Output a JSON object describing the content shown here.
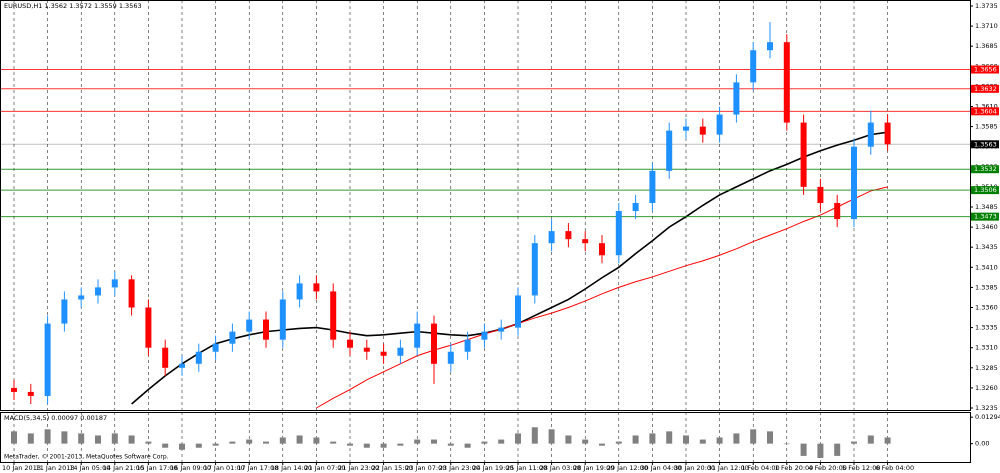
{
  "header": "EURUSD,H1 1.3562 1.3572 1.3559 1.3563",
  "footer": "MetaTrader, © 2001-2013, MetaQuotes Software Corp.",
  "chart_data": {
    "type": "candlestick",
    "categories": [
      "10 Jan 2013",
      null,
      "11 Jan 2013",
      null,
      "14 Jan 05:00",
      null,
      "14 Jan 21:00",
      null,
      "15 Jan 17:00",
      null,
      "16 Jan 09:00",
      null,
      "17 Jan 01:00",
      null,
      "17 Jan 17:00",
      null,
      "18 Jan 14:00",
      null,
      "21 Jan 07:00",
      null,
      "21 Jan 23:00",
      null,
      "22 Jan 15:00",
      null,
      "23 Jan 07:00",
      null,
      "23 Jan 23:00",
      null,
      "24 Jan 19:00",
      null,
      "25 Jan 11:00",
      null,
      "28 Jan 03:00",
      null,
      "28 Jan 19:00",
      null,
      "29 Jan 12:00",
      null,
      "30 Jan 04:00",
      null,
      "30 Jan 20:00",
      null,
      "31 Jan 12:00",
      null,
      "1 Feb 04:00",
      null,
      "1 Feb 20:00",
      null,
      "4 Feb 20:00",
      null,
      "5 Feb 12:00",
      null,
      "6 Feb 04:00"
    ],
    "open": [
      1.326,
      1.3255,
      1.325,
      1.334,
      1.337,
      1.3375,
      1.3385,
      1.3395,
      1.336,
      1.331,
      1.3285,
      1.329,
      1.3305,
      1.3315,
      1.333,
      1.3345,
      1.332,
      1.337,
      1.339,
      1.338,
      1.332,
      1.331,
      1.3305,
      1.33,
      1.331,
      1.334,
      1.329,
      1.3305,
      1.332,
      1.333,
      1.3335,
      1.3375,
      1.344,
      1.3455,
      1.3445,
      1.344,
      1.3425,
      1.348,
      1.349,
      1.353,
      1.358,
      1.3585,
      1.3575,
      1.36,
      1.364,
      1.368,
      1.369,
      1.359,
      1.351,
      1.349,
      1.347,
      1.356,
      1.359
    ],
    "high": [
      1.327,
      1.3265,
      1.335,
      1.338,
      1.3385,
      1.3395,
      1.3405,
      1.34,
      1.337,
      1.332,
      1.33,
      1.3315,
      1.3325,
      1.334,
      1.3355,
      1.3355,
      1.338,
      1.34,
      1.34,
      1.339,
      1.333,
      1.332,
      1.3315,
      1.332,
      1.3355,
      1.335,
      1.3315,
      1.333,
      1.334,
      1.3345,
      1.3385,
      1.345,
      1.347,
      1.3465,
      1.3455,
      1.345,
      1.349,
      1.35,
      1.354,
      1.359,
      1.3595,
      1.3595,
      1.361,
      1.365,
      1.369,
      1.3715,
      1.37,
      1.36,
      1.352,
      1.35,
      1.357,
      1.3605,
      1.36
    ],
    "low": [
      1.3245,
      1.324,
      1.324,
      1.333,
      1.336,
      1.3365,
      1.3375,
      1.335,
      1.33,
      1.3275,
      1.3275,
      1.328,
      1.3295,
      1.3305,
      1.332,
      1.331,
      1.331,
      1.336,
      1.337,
      1.331,
      1.33,
      1.3295,
      1.329,
      1.329,
      1.33,
      1.3265,
      1.328,
      1.3295,
      1.331,
      1.332,
      1.3325,
      1.3365,
      1.343,
      1.3435,
      1.343,
      1.3415,
      1.3415,
      1.347,
      1.348,
      1.352,
      1.357,
      1.3565,
      1.3565,
      1.359,
      1.363,
      1.367,
      1.358,
      1.35,
      1.348,
      1.346,
      1.346,
      1.355,
      1.3555
    ],
    "close": [
      1.3255,
      1.325,
      1.334,
      1.337,
      1.3375,
      1.3385,
      1.3395,
      1.336,
      1.331,
      1.3285,
      1.329,
      1.3305,
      1.3315,
      1.333,
      1.3345,
      1.332,
      1.337,
      1.339,
      1.338,
      1.332,
      1.331,
      1.3305,
      1.33,
      1.331,
      1.334,
      1.329,
      1.3305,
      1.332,
      1.333,
      1.3335,
      1.3375,
      1.344,
      1.3455,
      1.3445,
      1.344,
      1.3425,
      1.348,
      1.349,
      1.353,
      1.358,
      1.3585,
      1.3575,
      1.36,
      1.364,
      1.368,
      1.369,
      1.359,
      1.351,
      1.349,
      1.347,
      1.356,
      1.359,
      1.3563
    ],
    "up_color": "#1e90ff",
    "down_color": "#ff0000",
    "ylim": [
      1.3235,
      1.3735
    ],
    "yticks": [
      1.3235,
      {
        "value": 1.326,
        "label": "1.3260"
      },
      1.3285,
      {
        "value": 1.331,
        "label": "1.3310"
      },
      1.3335,
      {
        "value": 1.336,
        "label": "1.3360"
      },
      1.3385,
      {
        "value": 1.341,
        "label": "1.3410"
      },
      1.3435,
      {
        "value": 1.346,
        "label": "1.3460"
      },
      1.3485,
      {
        "value": 1.351,
        "label": "1.3510"
      },
      1.3535,
      {
        "value": 1.356,
        "label": "1.3560"
      },
      1.3585,
      {
        "value": 1.361,
        "label": "1.3610"
      },
      1.3635,
      {
        "value": 1.366,
        "label": "1.3660"
      },
      1.3685,
      {
        "value": 1.371,
        "label": "1.3710"
      },
      1.3735
    ],
    "grid": true,
    "lines": [
      {
        "color": "#000000",
        "values": [
          null,
          null,
          null,
          null,
          null,
          null,
          null,
          1.324,
          1.3258,
          1.3275,
          1.329,
          1.3303,
          1.3315,
          1.3321,
          1.3326,
          1.333,
          1.3332,
          1.3334,
          1.3335,
          1.3332,
          1.3328,
          1.3325,
          1.3326,
          1.3328,
          1.333,
          1.3328,
          1.3326,
          1.3325,
          1.3328,
          1.3333,
          1.334,
          1.335,
          1.336,
          1.337,
          1.3383,
          1.3397,
          1.341,
          1.3427,
          1.3443,
          1.346,
          1.3473,
          1.3487,
          1.35,
          1.351,
          1.352,
          1.353,
          1.3538,
          1.3547,
          1.3555,
          1.3562,
          1.3568,
          1.3575,
          1.3578
        ]
      },
      {
        "color": "#ff0000",
        "values": [
          null,
          null,
          null,
          null,
          null,
          null,
          null,
          null,
          null,
          null,
          null,
          null,
          null,
          null,
          null,
          null,
          null,
          null,
          1.3235,
          1.3247,
          1.3258,
          1.327,
          1.328,
          1.329,
          1.33,
          1.3307,
          1.3313,
          1.332,
          1.3327,
          1.3333,
          1.334,
          1.3347,
          1.3353,
          1.336,
          1.3368,
          1.3377,
          1.3385,
          1.3392,
          1.3398,
          1.3405,
          1.3412,
          1.3418,
          1.3425,
          1.3433,
          1.3442,
          1.345,
          1.3458,
          1.3467,
          1.3475,
          1.3485,
          1.3495,
          1.3505,
          1.351
        ]
      }
    ],
    "levels": [
      {
        "value": 1.3656,
        "color": "#ff0000"
      },
      {
        "value": 1.3632,
        "color": "#ff0000"
      },
      {
        "value": 1.3604,
        "color": "#ff0000"
      },
      {
        "value": 1.3563,
        "color": "#000000"
      },
      {
        "value": 1.3532,
        "color": "#008000"
      },
      {
        "value": 1.3506,
        "color": "#008000"
      },
      {
        "value": 1.3473,
        "color": "#008000"
      }
    ],
    "indicator": {
      "type": "bar",
      "title": "MACD(5,34,5) 0.00097 0.00187",
      "color": "#808080",
      "values": [
        0.006,
        0.005,
        0.007,
        0.006,
        0.005,
        0.004,
        0.005,
        0.004,
        0.001,
        -0.002,
        -0.003,
        -0.002,
        -0.001,
        0.001,
        0.002,
        0.001,
        0.003,
        0.004,
        0.003,
        0.001,
        -0.001,
        -0.002,
        -0.002,
        -0.001,
        0.002,
        0.002,
        -0.001,
        -0.002,
        0.001,
        0.002,
        0.005,
        0.008,
        0.007,
        0.004,
        0.002,
        -0.001,
        0.001,
        0.004,
        0.005,
        0.006,
        0.004,
        0.002,
        0.003,
        0.005,
        0.007,
        0.006,
        0.0,
        -0.006,
        -0.007,
        -0.006,
        0.001,
        0.004,
        0.003
      ],
      "ylim": [
        -0.008,
        0.014
      ],
      "yticks": [
        {
          "value": 0,
          "label": "0.00"
        },
        0.01294
      ]
    }
  }
}
